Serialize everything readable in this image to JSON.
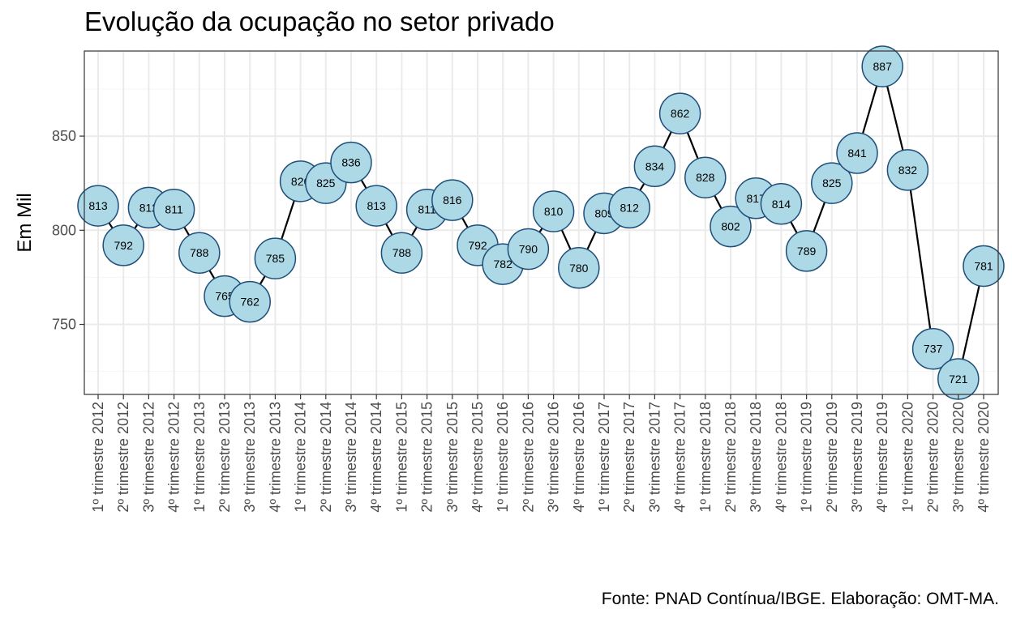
{
  "chart_data": {
    "type": "line",
    "title": "Evolução da ocupação no setor privado",
    "xlabel": "",
    "ylabel": "Em Mil",
    "caption": "Fonte: PNAD Contínua/IBGE. Elaboração: OMT-MA.",
    "categories": [
      "1º trimestre 2012",
      "2º trimestre 2012",
      "3º trimestre 2012",
      "4º trimestre 2012",
      "1º trimestre 2013",
      "2º trimestre 2013",
      "3º trimestre 2013",
      "4º trimestre 2013",
      "1º trimestre 2014",
      "2º trimestre 2014",
      "3º trimestre 2014",
      "4º trimestre 2014",
      "1º trimestre 2015",
      "2º trimestre 2015",
      "3º trimestre 2015",
      "4º trimestre 2015",
      "1º trimestre 2016",
      "2º trimestre 2016",
      "3º trimestre 2016",
      "4º trimestre 2016",
      "1º trimestre 2017",
      "2º trimestre 2017",
      "3º trimestre 2017",
      "4º trimestre 2017",
      "1º trimestre 2018",
      "2º trimestre 2018",
      "3º trimestre 2018",
      "4º trimestre 2018",
      "1º trimestre 2019",
      "2º trimestre 2019",
      "3º trimestre 2019",
      "4º trimestre 2019",
      "1º trimestre 2020",
      "2º trimestre 2020",
      "3º trimestre 2020",
      "4º trimestre 2020"
    ],
    "values": [
      813,
      792,
      812,
      811,
      788,
      765,
      762,
      785,
      826,
      825,
      836,
      813,
      788,
      811,
      816,
      792,
      782,
      790,
      810,
      780,
      809,
      812,
      834,
      862,
      828,
      802,
      817,
      814,
      789,
      825,
      841,
      887,
      832,
      737,
      721,
      781
    ],
    "yticks": [
      750,
      800,
      850
    ],
    "ylim": [
      712.8,
      895.2
    ],
    "grid": true,
    "colors": {
      "line": "#000000",
      "marker_fill": "#add8e6",
      "marker_stroke": "#1f4e79",
      "grid_major": "#ebebeb",
      "grid_minor": "#f5f5f5",
      "panel_border": "#333333"
    }
  }
}
